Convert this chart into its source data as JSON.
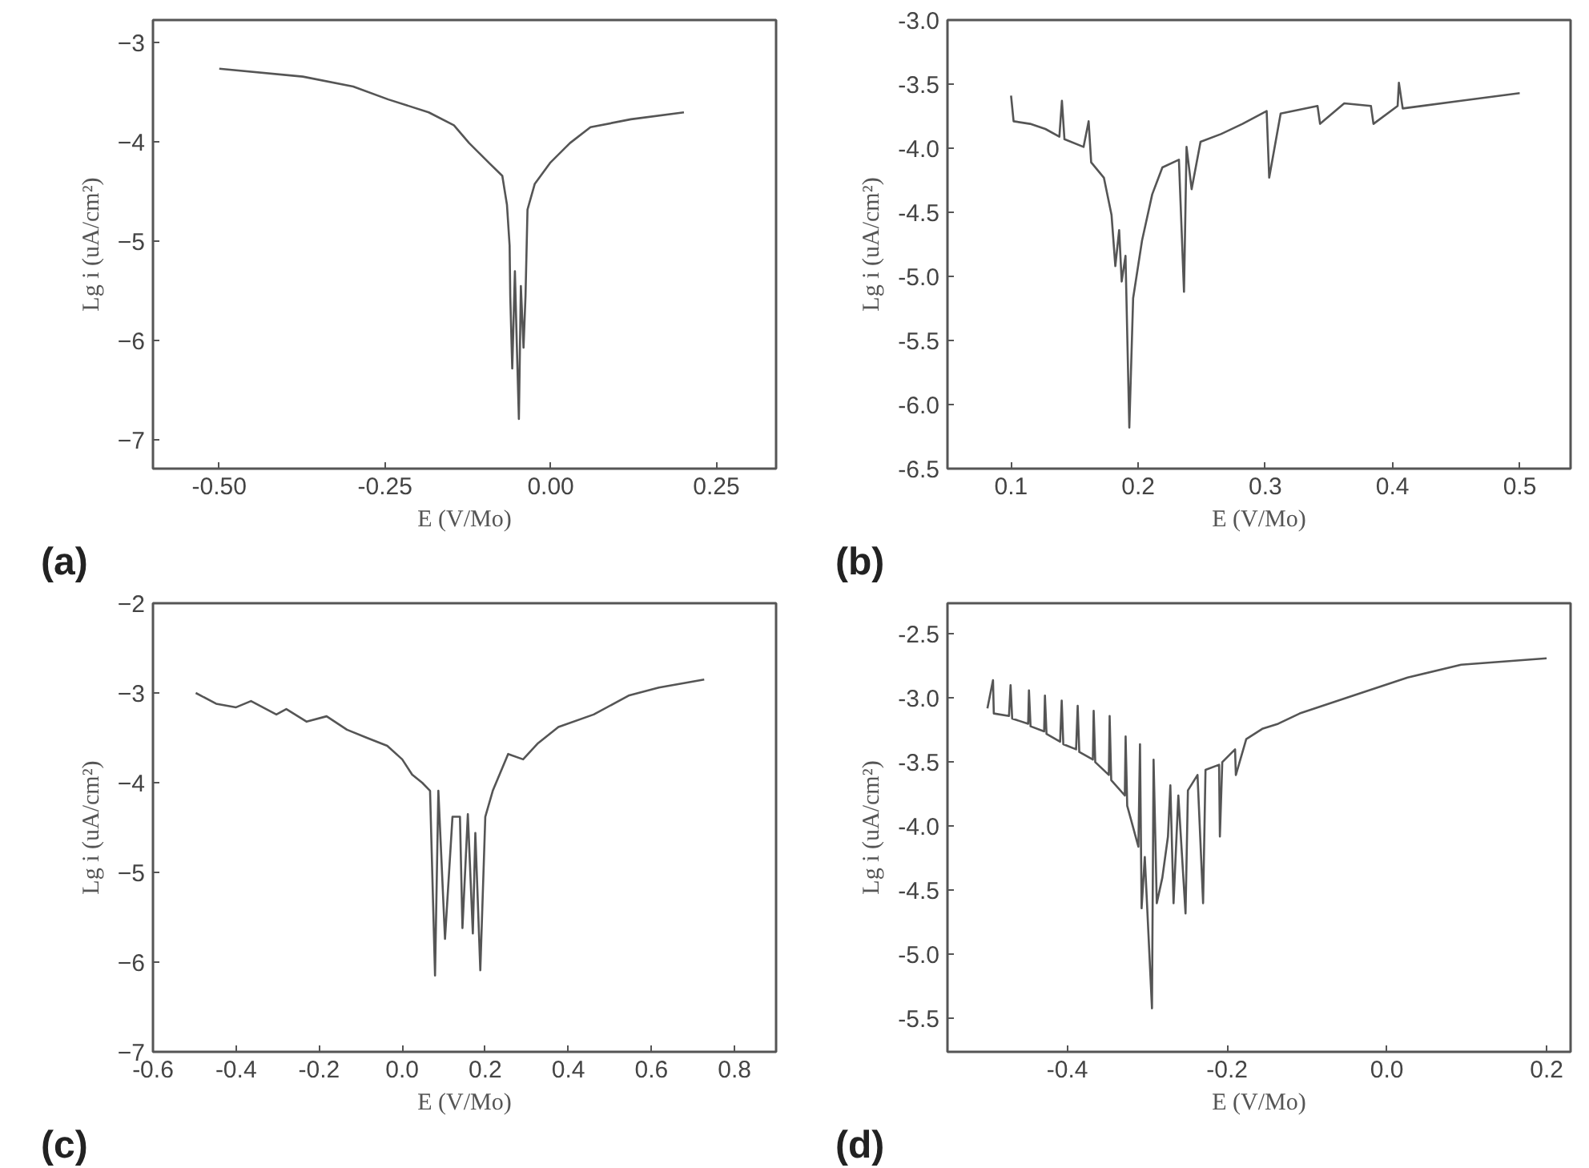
{
  "chart_data": [
    {
      "type": "line",
      "xlabel": "E (V/Mo)",
      "ylabel": "Lg i (uA/cm²)",
      "annotations": [
        "(a)"
      ],
      "xlim": [
        -0.6,
        0.34
      ],
      "ylim": [
        -7.29,
        -2.77
      ],
      "xticks": [
        {
          "value": -0.5,
          "label": "-0.50"
        },
        {
          "value": -0.25,
          "label": "-0.25"
        },
        {
          "value": 0,
          "label": "0.00"
        },
        {
          "value": 0.25,
          "label": "0.25"
        }
      ],
      "yticks": [
        -7,
        -6,
        -5,
        -4,
        -3
      ],
      "grid": false,
      "marker": "none",
      "line_style": "solid",
      "color": "#555555",
      "x": [
        -0.5,
        -0.374,
        -0.298,
        -0.245,
        -0.184,
        -0.146,
        -0.123,
        -0.093,
        -0.073,
        -0.066,
        -0.062,
        -0.061,
        -0.058,
        -0.054,
        -0.051,
        -0.048,
        -0.045,
        -0.041,
        -0.038,
        -0.035,
        -0.024,
        -0.001,
        0.029,
        0.06,
        0.121,
        0.201
      ],
      "values": [
        -3.26,
        -3.34,
        -3.44,
        -3.57,
        -3.7,
        -3.83,
        -4.01,
        -4.21,
        -4.34,
        -4.63,
        -5.04,
        -5.55,
        -6.28,
        -5.3,
        -6.07,
        -6.79,
        -5.45,
        -6.07,
        -5.55,
        -4.68,
        -4.42,
        -4.21,
        -4.01,
        -3.85,
        -3.77,
        -3.7
      ]
    },
    {
      "type": "line",
      "xlabel": "E (V/Mo)",
      "ylabel": "Lg i (uA/cm²)",
      "annotations": [
        "(b)"
      ],
      "xlim": [
        0.05,
        0.54
      ],
      "ylim": [
        -6.5,
        -3.0
      ],
      "xticks": [
        0.1,
        0.2,
        0.3,
        0.4,
        0.5
      ],
      "yticks": [
        {
          "value": -6.5,
          "label": "-6.5"
        },
        {
          "value": -6.0,
          "label": "-6.0"
        },
        {
          "value": -5.5,
          "label": "-5.5"
        },
        {
          "value": -5.0,
          "label": "-5.0"
        },
        {
          "value": -4.5,
          "label": "-4.5"
        },
        {
          "value": -4.0,
          "label": "-4.0"
        },
        {
          "value": -3.5,
          "label": "-3.5"
        },
        {
          "value": -3.0,
          "label": "-3.0"
        }
      ],
      "grid": false,
      "marker": "none",
      "line_style": "solid",
      "color": "#555555",
      "x": [
        0.1,
        0.102,
        0.115,
        0.127,
        0.138,
        0.14,
        0.142,
        0.157,
        0.161,
        0.163,
        0.173,
        0.179,
        0.182,
        0.185,
        0.187,
        0.19,
        0.193,
        0.196,
        0.203,
        0.211,
        0.219,
        0.232,
        0.236,
        0.238,
        0.242,
        0.249,
        0.265,
        0.282,
        0.301,
        0.303,
        0.312,
        0.341,
        0.343,
        0.362,
        0.383,
        0.385,
        0.404,
        0.405,
        0.408,
        0.454,
        0.5
      ],
      "values": [
        -3.59,
        -3.79,
        -3.81,
        -3.85,
        -3.91,
        -3.63,
        -3.93,
        -3.99,
        -3.79,
        -4.11,
        -4.23,
        -4.52,
        -4.92,
        -4.64,
        -5.04,
        -4.84,
        -6.18,
        -5.17,
        -4.72,
        -4.36,
        -4.15,
        -4.09,
        -5.12,
        -3.99,
        -4.32,
        -3.95,
        -3.89,
        -3.81,
        -3.71,
        -4.23,
        -3.73,
        -3.67,
        -3.81,
        -3.65,
        -3.67,
        -3.81,
        -3.67,
        -3.49,
        -3.69,
        -3.63,
        -3.57
      ]
    },
    {
      "type": "line",
      "xlabel": "E (V/Mo)",
      "ylabel": "Lg i (uA/cm²)",
      "annotations": [
        "(c)"
      ],
      "xlim": [
        -0.6,
        0.9
      ],
      "ylim": [
        -7,
        -2
      ],
      "xticks": [
        {
          "value": -0.6,
          "label": "-0.6"
        },
        {
          "value": -0.4,
          "label": "-0.4"
        },
        {
          "value": -0.2,
          "label": "-0.2"
        },
        {
          "value": 0,
          "label": "0.0"
        },
        {
          "value": 0.2,
          "label": "0.2"
        },
        {
          "value": 0.4,
          "label": "0.4"
        },
        {
          "value": 0.6,
          "label": "0.6"
        },
        {
          "value": 0.8,
          "label": "0.8"
        }
      ],
      "yticks": [
        -7,
        -6,
        -5,
        -4,
        -3,
        -2
      ],
      "grid": false,
      "marker": "none",
      "line_style": "solid",
      "color": "#555555",
      "x": [
        -0.497,
        -0.448,
        -0.4,
        -0.364,
        -0.303,
        -0.279,
        -0.23,
        -0.182,
        -0.133,
        -0.085,
        -0.036,
        0.0,
        0.024,
        0.048,
        0.067,
        0.079,
        0.087,
        0.103,
        0.121,
        0.139,
        0.145,
        0.158,
        0.17,
        0.176,
        0.188,
        0.2,
        0.218,
        0.255,
        0.291,
        0.327,
        0.376,
        0.461,
        0.545,
        0.618,
        0.727
      ],
      "values": [
        -3.0,
        -3.12,
        -3.16,
        -3.09,
        -3.24,
        -3.18,
        -3.32,
        -3.26,
        -3.41,
        -3.5,
        -3.59,
        -3.74,
        -3.91,
        -4.0,
        -4.09,
        -6.15,
        -4.09,
        -5.74,
        -4.38,
        -4.38,
        -5.62,
        -4.35,
        -5.68,
        -4.56,
        -6.09,
        -4.38,
        -4.09,
        -3.68,
        -3.74,
        -3.56,
        -3.38,
        -3.24,
        -3.03,
        -2.94,
        -2.85
      ]
    },
    {
      "type": "line",
      "xlabel": "E (V/Mo)",
      "ylabel": "Lg i (uA/cm²)",
      "annotations": [
        "(d)"
      ],
      "xlim": [
        -0.55,
        0.23
      ],
      "ylim": [
        -5.76,
        -2.26
      ],
      "xticks": [
        {
          "value": -0.4,
          "label": "-0.4"
        },
        {
          "value": -0.2,
          "label": "-0.2"
        },
        {
          "value": 0,
          "label": "0.0"
        },
        {
          "value": 0.2,
          "label": "0.2"
        }
      ],
      "yticks": [
        {
          "value": -5.5,
          "label": "-5.5"
        },
        {
          "value": -5.0,
          "label": "-5.0"
        },
        {
          "value": -4.5,
          "label": "-4.5"
        },
        {
          "value": -4.0,
          "label": "-4.0"
        },
        {
          "value": -3.5,
          "label": "-3.5"
        },
        {
          "value": -3.0,
          "label": "-3.0"
        },
        {
          "value": -2.5,
          "label": "-2.5"
        }
      ],
      "grid": false,
      "marker": "none",
      "line_style": "solid",
      "color": "#555555",
      "x": [
        -0.5,
        -0.493,
        -0.492,
        -0.473,
        -0.471,
        -0.469,
        -0.449,
        -0.448,
        -0.446,
        -0.429,
        -0.428,
        -0.426,
        -0.409,
        -0.407,
        -0.405,
        -0.389,
        -0.387,
        -0.385,
        -0.368,
        -0.367,
        -0.365,
        -0.348,
        -0.347,
        -0.345,
        -0.328,
        -0.327,
        -0.325,
        -0.311,
        -0.309,
        -0.307,
        -0.303,
        -0.294,
        -0.292,
        -0.288,
        -0.281,
        -0.274,
        -0.271,
        -0.267,
        -0.261,
        -0.252,
        -0.249,
        -0.237,
        -0.23,
        -0.227,
        -0.21,
        -0.209,
        -0.206,
        -0.19,
        -0.189,
        -0.176,
        -0.156,
        -0.136,
        -0.109,
        -0.042,
        0.026,
        0.093,
        0.2
      ],
      "values": [
        -3.08,
        -2.86,
        -3.12,
        -3.14,
        -2.9,
        -3.16,
        -3.2,
        -2.94,
        -3.22,
        -3.26,
        -2.98,
        -3.28,
        -3.34,
        -3.02,
        -3.36,
        -3.4,
        -3.06,
        -3.42,
        -3.48,
        -3.1,
        -3.5,
        -3.6,
        -3.14,
        -3.64,
        -3.76,
        -3.3,
        -3.84,
        -4.16,
        -3.36,
        -4.64,
        -4.24,
        -5.42,
        -3.48,
        -4.6,
        -4.4,
        -4.08,
        -3.68,
        -4.6,
        -3.76,
        -4.68,
        -3.72,
        -3.6,
        -4.6,
        -3.56,
        -3.52,
        -4.08,
        -3.5,
        -3.4,
        -3.6,
        -3.32,
        -3.24,
        -3.2,
        -3.12,
        -2.98,
        -2.84,
        -2.74,
        -2.69
      ]
    }
  ]
}
